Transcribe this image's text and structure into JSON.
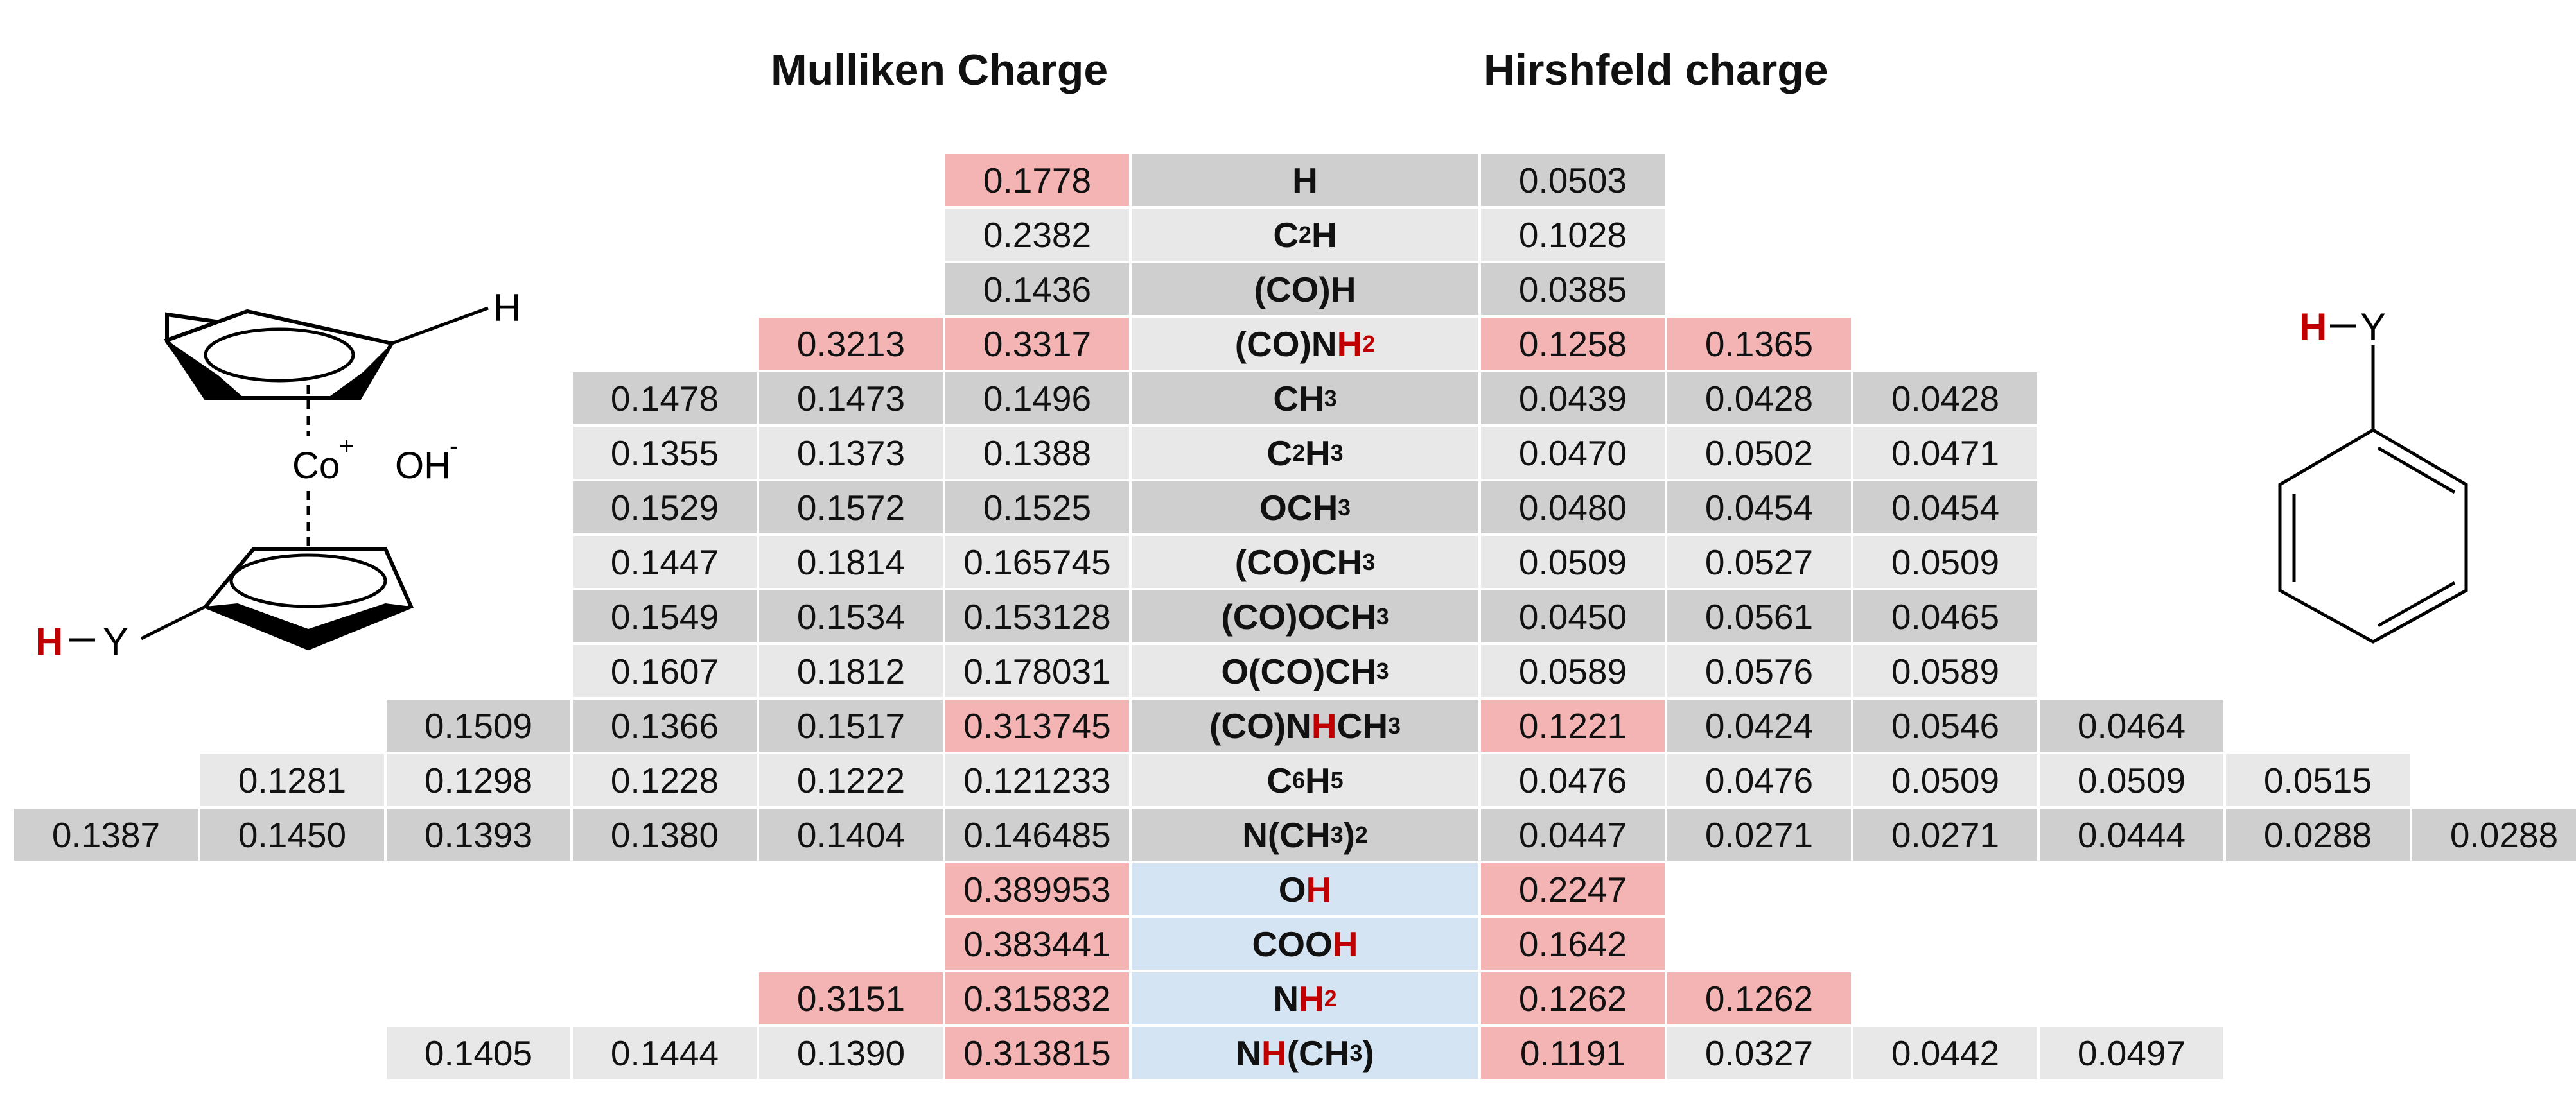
{
  "headers": {
    "mulliken": "Mulliken Charge",
    "hirshfeld": "Hirshfeld charge"
  },
  "colors": {
    "dark_row": "#cfcfcf",
    "light_row": "#e8e8e8",
    "highlight_pink": "#f4b4b4",
    "blue_label": "#d4e4f2",
    "red_atom": "#c00000"
  },
  "molecule_left": {
    "h_top": "H",
    "co": "Co",
    "co_charge": "+",
    "oh": "OH",
    "oh_charge": "-",
    "h_sub": "H",
    "y_sub": "Y"
  },
  "molecule_right": {
    "h": "H",
    "y": "Y"
  },
  "rows": [
    {
      "label": "H",
      "label_parts": [
        [
          "H",
          ""
        ]
      ],
      "mulliken": [
        "0.1778"
      ],
      "mulliken_hl": [
        true
      ],
      "hirshfeld": [
        "0.0503"
      ],
      "hirshfeld_hl": [
        false
      ],
      "shade": "dark"
    },
    {
      "label": "C2H",
      "label_parts": [
        [
          "C",
          ""
        ],
        [
          "2",
          "sub"
        ],
        [
          "H",
          ""
        ]
      ],
      "mulliken": [
        "0.2382"
      ],
      "mulliken_hl": [
        false
      ],
      "hirshfeld": [
        "0.1028"
      ],
      "hirshfeld_hl": [
        false
      ],
      "shade": "light"
    },
    {
      "label": "(CO)H",
      "label_parts": [
        [
          "(CO)H",
          ""
        ]
      ],
      "mulliken": [
        "0.1436"
      ],
      "mulliken_hl": [
        false
      ],
      "hirshfeld": [
        "0.0385"
      ],
      "hirshfeld_hl": [
        false
      ],
      "shade": "dark"
    },
    {
      "label": "(CO)NH2",
      "label_parts": [
        [
          "(CO)N",
          ""
        ],
        [
          "H",
          "red"
        ],
        [
          "2",
          "subred"
        ]
      ],
      "mulliken": [
        "0.3213",
        "0.3317"
      ],
      "mulliken_hl": [
        true,
        true
      ],
      "hirshfeld": [
        "0.1258",
        "0.1365"
      ],
      "hirshfeld_hl": [
        true,
        true
      ],
      "shade": "light"
    },
    {
      "label": "CH3",
      "label_parts": [
        [
          "CH",
          ""
        ],
        [
          "3",
          "sub"
        ]
      ],
      "mulliken": [
        "0.1478",
        "0.1473",
        "0.1496"
      ],
      "mulliken_hl": [
        false,
        false,
        false
      ],
      "hirshfeld": [
        "0.0439",
        "0.0428",
        "0.0428"
      ],
      "hirshfeld_hl": [
        false,
        false,
        false
      ],
      "shade": "dark"
    },
    {
      "label": "C2H3",
      "label_parts": [
        [
          "C",
          ""
        ],
        [
          "2",
          "sub"
        ],
        [
          "H",
          ""
        ],
        [
          "3",
          "sub"
        ]
      ],
      "mulliken": [
        "0.1355",
        "0.1373",
        "0.1388"
      ],
      "mulliken_hl": [
        false,
        false,
        false
      ],
      "hirshfeld": [
        "0.0470",
        "0.0502",
        "0.0471"
      ],
      "hirshfeld_hl": [
        false,
        false,
        false
      ],
      "shade": "light"
    },
    {
      "label": "OCH3",
      "label_parts": [
        [
          "OCH",
          ""
        ],
        [
          "3",
          "sub"
        ]
      ],
      "mulliken": [
        "0.1529",
        "0.1572",
        "0.1525"
      ],
      "mulliken_hl": [
        false,
        false,
        false
      ],
      "hirshfeld": [
        "0.0480",
        "0.0454",
        "0.0454"
      ],
      "hirshfeld_hl": [
        false,
        false,
        false
      ],
      "shade": "dark"
    },
    {
      "label": "(CO)CH3",
      "label_parts": [
        [
          "(CO)CH",
          ""
        ],
        [
          "3",
          "sub"
        ]
      ],
      "mulliken": [
        "0.1447",
        "0.1814",
        "0.165745"
      ],
      "mulliken_hl": [
        false,
        false,
        false
      ],
      "hirshfeld": [
        "0.0509",
        "0.0527",
        "0.0509"
      ],
      "hirshfeld_hl": [
        false,
        false,
        false
      ],
      "shade": "light"
    },
    {
      "label": "(CO)OCH3",
      "label_parts": [
        [
          "(CO)OCH",
          ""
        ],
        [
          "3",
          "sub"
        ]
      ],
      "mulliken": [
        "0.1549",
        "0.1534",
        "0.153128"
      ],
      "mulliken_hl": [
        false,
        false,
        false
      ],
      "hirshfeld": [
        "0.0450",
        "0.0561",
        "0.0465"
      ],
      "hirshfeld_hl": [
        false,
        false,
        false
      ],
      "shade": "dark"
    },
    {
      "label": "O(CO)CH3",
      "label_parts": [
        [
          "O(CO)CH",
          ""
        ],
        [
          "3",
          "sub"
        ]
      ],
      "mulliken": [
        "0.1607",
        "0.1812",
        "0.178031"
      ],
      "mulliken_hl": [
        false,
        false,
        false
      ],
      "hirshfeld": [
        "0.0589",
        "0.0576",
        "0.0589"
      ],
      "hirshfeld_hl": [
        false,
        false,
        false
      ],
      "shade": "light"
    },
    {
      "label": "(CO)NHCH3",
      "label_parts": [
        [
          "(CO)N",
          ""
        ],
        [
          "H",
          "red"
        ],
        [
          "CH",
          ""
        ],
        [
          "3",
          "sub"
        ]
      ],
      "mulliken": [
        "0.1509",
        "0.1366",
        "0.1517",
        "0.313745"
      ],
      "mulliken_hl": [
        false,
        false,
        false,
        true
      ],
      "hirshfeld": [
        "0.1221",
        "0.0424",
        "0.0546",
        "0.0464"
      ],
      "hirshfeld_hl": [
        true,
        false,
        false,
        false
      ],
      "shade": "dark"
    },
    {
      "label": "C6H5",
      "label_parts": [
        [
          "C",
          ""
        ],
        [
          "6",
          "sub"
        ],
        [
          "H",
          ""
        ],
        [
          "5",
          "sub"
        ]
      ],
      "mulliken": [
        "0.1281",
        "0.1298",
        "0.1228",
        "0.1222",
        "0.121233"
      ],
      "mulliken_hl": [
        false,
        false,
        false,
        false,
        false
      ],
      "hirshfeld": [
        "0.0476",
        "0.0476",
        "0.0509",
        "0.0509",
        "0.0515"
      ],
      "hirshfeld_hl": [
        false,
        false,
        false,
        false,
        false
      ],
      "shade": "light"
    },
    {
      "label": "N(CH3)2",
      "label_parts": [
        [
          "N(CH",
          ""
        ],
        [
          "3",
          "sub"
        ],
        [
          ")",
          ""
        ],
        [
          "2",
          "sub"
        ]
      ],
      "mulliken": [
        "0.1387",
        "0.1450",
        "0.1393",
        "0.1380",
        "0.1404",
        "0.146485"
      ],
      "mulliken_hl": [
        false,
        false,
        false,
        false,
        false,
        false
      ],
      "hirshfeld": [
        "0.0447",
        "0.0271",
        "0.0271",
        "0.0444",
        "0.0288",
        "0.0288"
      ],
      "hirshfeld_hl": [
        false,
        false,
        false,
        false,
        false,
        false
      ],
      "shade": "dark"
    },
    {
      "label": "OH",
      "label_parts": [
        [
          "O",
          ""
        ],
        [
          "H",
          "red"
        ]
      ],
      "mulliken": [
        "0.389953"
      ],
      "mulliken_hl": [
        true
      ],
      "hirshfeld": [
        "0.2247"
      ],
      "hirshfeld_hl": [
        true
      ],
      "shade": "blue"
    },
    {
      "label": "COOH",
      "label_parts": [
        [
          "COO",
          ""
        ],
        [
          "H",
          "red"
        ]
      ],
      "mulliken": [
        "0.383441"
      ],
      "mulliken_hl": [
        true
      ],
      "hirshfeld": [
        "0.1642"
      ],
      "hirshfeld_hl": [
        true
      ],
      "shade": "blue"
    },
    {
      "label": "NH2",
      "label_parts": [
        [
          "N",
          ""
        ],
        [
          "H",
          "red"
        ],
        [
          "2",
          "subred"
        ]
      ],
      "mulliken": [
        "0.3151",
        "0.315832"
      ],
      "mulliken_hl": [
        true,
        true
      ],
      "hirshfeld": [
        "0.1262",
        "0.1262"
      ],
      "hirshfeld_hl": [
        true,
        true
      ],
      "shade": "blue"
    },
    {
      "label": "NH(CH3)",
      "label_parts": [
        [
          "N",
          ""
        ],
        [
          "H",
          "red"
        ],
        [
          "(CH",
          ""
        ],
        [
          "3",
          "sub"
        ],
        [
          ")",
          ""
        ]
      ],
      "mulliken": [
        "0.1405",
        "0.1444",
        "0.1390",
        "0.313815"
      ],
      "mulliken_hl": [
        false,
        false,
        false,
        true
      ],
      "hirshfeld": [
        "0.1191",
        "0.0327",
        "0.0442",
        "0.0497"
      ],
      "hirshfeld_hl": [
        true,
        false,
        false,
        false
      ],
      "shade": "blue"
    }
  ]
}
